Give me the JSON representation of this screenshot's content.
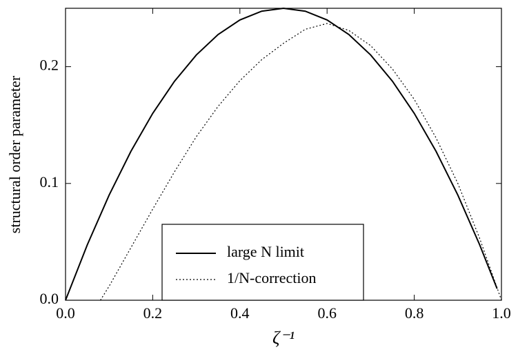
{
  "chart_data": {
    "type": "line",
    "x_label": "ζ⁻¹",
    "y_label": "structural order parameter",
    "xlim": [
      0,
      1
    ],
    "ylim": [
      0,
      0.25
    ],
    "xticks": [
      {
        "value": 0,
        "label": "0.0"
      },
      {
        "value": 0.2,
        "label": "0.2"
      },
      {
        "value": 0.4,
        "label": "0.4"
      },
      {
        "value": 0.6,
        "label": "0.6"
      },
      {
        "value": 0.8,
        "label": "0.8"
      },
      {
        "value": 1,
        "label": "1.0"
      }
    ],
    "yticks": [
      {
        "value": 0,
        "label": "0.0"
      },
      {
        "value": 0.1,
        "label": "0.1"
      },
      {
        "value": 0.2,
        "label": "0.2"
      }
    ],
    "legend": "lower center",
    "series": [
      {
        "name": "large N limit",
        "color": "#000000",
        "dash": "solid",
        "x": [
          0,
          0.05,
          0.1,
          0.15,
          0.2,
          0.25,
          0.3,
          0.35,
          0.4,
          0.45,
          0.5,
          0.55,
          0.6,
          0.65,
          0.7,
          0.75,
          0.8,
          0.85,
          0.9,
          0.95,
          0.99
        ],
        "values": [
          0,
          0.0475,
          0.09,
          0.1275,
          0.16,
          0.1875,
          0.21,
          0.2275,
          0.24,
          0.2475,
          0.25,
          0.2475,
          0.24,
          0.2275,
          0.21,
          0.1875,
          0.16,
          0.1275,
          0.09,
          0.0475,
          0.0099
        ]
      },
      {
        "name": "1/N-correction",
        "color": "#000000",
        "dash": "dotted",
        "x": [
          0.08,
          0.1,
          0.15,
          0.2,
          0.25,
          0.3,
          0.35,
          0.4,
          0.45,
          0.5,
          0.55,
          0.6,
          0.65,
          0.7,
          0.75,
          0.8,
          0.85,
          0.9,
          0.95,
          1.0
        ],
        "values": [
          0,
          0.012,
          0.045,
          0.078,
          0.11,
          0.14,
          0.166,
          0.188,
          0.206,
          0.22,
          0.232,
          0.237,
          0.231,
          0.218,
          0.198,
          0.172,
          0.139,
          0.1,
          0.053,
          0
        ]
      }
    ]
  }
}
